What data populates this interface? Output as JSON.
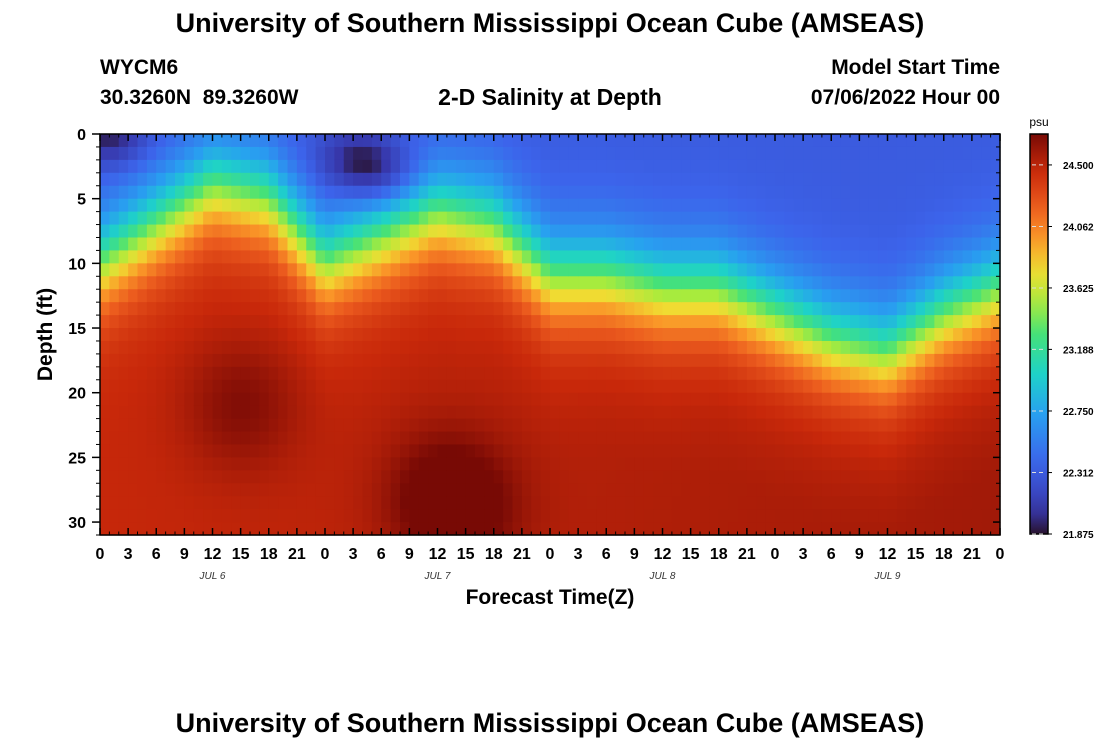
{
  "header": {
    "title": "University of Southern Mississippi Ocean Cube (AMSEAS)",
    "station_id": "WYCM6",
    "station_coords": "30.3260N  89.3260W",
    "plot_title": "2-D Salinity at Depth",
    "model_start_label": "Model Start Time",
    "model_start_value": "07/06/2022 Hour 00"
  },
  "footer": {
    "title": "University of Southern Mississippi Ocean Cube (AMSEAS)"
  },
  "chart_data": {
    "type": "heatmap",
    "title": "2-D Salinity at Depth",
    "xlabel": "Forecast Time(Z)",
    "ylabel": "Depth (ft)",
    "x_hours": [
      0,
      96
    ],
    "x_tick_labels": [
      "0",
      "3",
      "6",
      "9",
      "12",
      "15",
      "18",
      "21",
      "0",
      "3",
      "6",
      "9",
      "12",
      "15",
      "18",
      "21",
      "0",
      "3",
      "6",
      "9",
      "12",
      "15",
      "18",
      "21",
      "0",
      "3",
      "6",
      "9",
      "12",
      "15",
      "18",
      "21",
      "0"
    ],
    "day_labels": [
      {
        "label": "JUL 6",
        "hour": 12
      },
      {
        "label": "JUL 7",
        "hour": 36
      },
      {
        "label": "JUL 8",
        "hour": 60
      },
      {
        "label": "JUL 9",
        "hour": 84
      }
    ],
    "y_ticks": [
      0,
      5,
      10,
      15,
      20,
      25,
      30
    ],
    "ylim": [
      0,
      31
    ],
    "y_reversed": true,
    "colorbar": {
      "unit": "psu",
      "min": 21.875,
      "max": 24.72,
      "ticks": [
        21.875,
        22.312,
        22.75,
        23.188,
        23.625,
        24.062,
        24.5
      ],
      "tick_labels": [
        "21.875",
        "22.312",
        "22.750",
        "23.188",
        "23.625",
        "24.062",
        "24.500"
      ]
    },
    "halocline_depth_ft": {
      "hours": [
        0,
        6,
        12,
        18,
        24,
        30,
        36,
        42,
        48,
        54,
        60,
        66,
        72,
        78,
        84,
        90,
        96
      ],
      "depths": [
        10,
        7,
        4,
        5,
        10,
        8,
        6,
        7,
        11,
        11,
        12,
        12,
        14,
        16,
        17,
        14,
        12
      ]
    },
    "fresh_cores": [
      {
        "hour": 1,
        "depth_ft": 0,
        "psu": 21.9
      },
      {
        "hour": 27,
        "depth_ft": 2,
        "psu": 22.0
      },
      {
        "hour": 30,
        "depth_ft": 3,
        "psu": 22.0
      }
    ],
    "salty_cores": [
      {
        "hour": 15,
        "depth_ft": 21,
        "psu": 24.7
      },
      {
        "hour": 36,
        "depth_ft": 28,
        "psu": 24.7
      },
      {
        "hour": 39,
        "depth_ft": 29,
        "psu": 24.72
      }
    ]
  }
}
